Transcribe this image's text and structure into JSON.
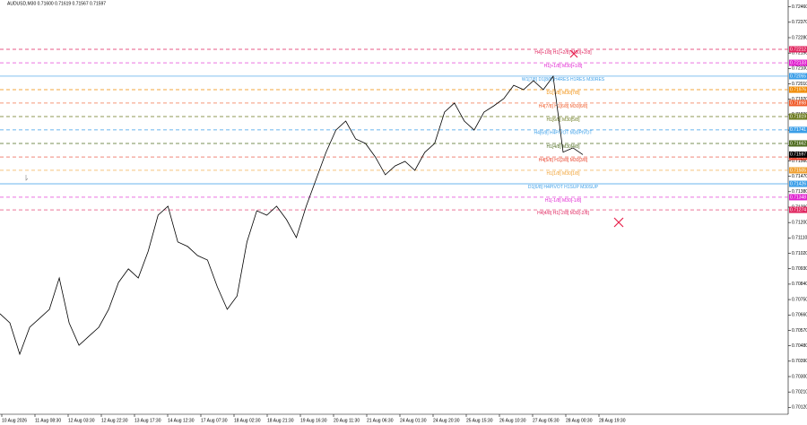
{
  "chart_data": {
    "type": "line",
    "title": "AUDUSD,M30  0.71600 0.71619 0.71567 0.71597",
    "ylim": [
      0.7008,
      0.725
    ],
    "yticks": [
      {
        "value": 0.7012,
        "label": "0.70120"
      },
      {
        "value": 0.7021,
        "label": "0.70210"
      },
      {
        "value": 0.703,
        "label": "0.70300"
      },
      {
        "value": 0.7039,
        "label": "0.70390"
      },
      {
        "value": 0.7048,
        "label": "0.70480"
      },
      {
        "value": 0.7057,
        "label": "0.70570"
      },
      {
        "value": 0.7066,
        "label": "0.70660"
      },
      {
        "value": 0.7075,
        "label": "0.70750"
      },
      {
        "value": 0.7084,
        "label": "0.70840"
      },
      {
        "value": 0.7093,
        "label": "0.70930"
      },
      {
        "value": 0.7102,
        "label": "0.71020"
      },
      {
        "value": 0.7111,
        "label": "0.71110"
      },
      {
        "value": 0.712,
        "label": "0.71200"
      },
      {
        "value": 0.7129,
        "label": "0.71290"
      },
      {
        "value": 0.7138,
        "label": "0.71380"
      },
      {
        "value": 0.7147,
        "label": "0.71470"
      },
      {
        "value": 0.7156,
        "label": "0.71560"
      },
      {
        "value": 0.7165,
        "label": "0.71650"
      },
      {
        "value": 0.7174,
        "label": "0.71740"
      },
      {
        "value": 0.7183,
        "label": "0.71830"
      },
      {
        "value": 0.7192,
        "label": "0.71920"
      },
      {
        "value": 0.7201,
        "label": "0.72010"
      },
      {
        "value": 0.721,
        "label": "0.72100"
      },
      {
        "value": 0.7219,
        "label": "0.72190"
      },
      {
        "value": 0.7228,
        "label": "0.72280"
      },
      {
        "value": 0.7237,
        "label": "0.72370"
      },
      {
        "value": 0.7246,
        "label": "0.72460"
      }
    ],
    "x_tick_labels": [
      "10 Aug 2026",
      "11 Aug 08:30",
      "12 Aug 03:30",
      "12 Aug 22:30",
      "13 Aug 17:30",
      "14 Aug 12:30",
      "17 Aug 07:30",
      "18 Aug 02:30",
      "18 Aug 21:30",
      "19 Aug 16:30",
      "20 Aug 11:30",
      "21 Aug 06:30",
      "24 Aug 01:30",
      "24 Aug 20:30",
      "25 Aug 15:30",
      "26 Aug 10:30",
      "27 Aug 05:30",
      "28 Aug 00:30",
      "28 Aug 19:30"
    ],
    "series": [
      {
        "name": "AUDUSD,M30",
        "color": "#000000",
        "values": [
          0.70667,
          0.70614,
          0.70431,
          0.70588,
          0.7064,
          0.70693,
          0.70876,
          0.70614,
          0.70483,
          0.70536,
          0.70588,
          0.70693,
          0.7085,
          0.70929,
          0.70876,
          0.71033,
          0.71243,
          0.71295,
          0.71086,
          0.7106,
          0.71007,
          0.70981,
          0.70824,
          0.70693,
          0.70771,
          0.71086,
          0.71269,
          0.71243,
          0.71295,
          0.71217,
          0.71112,
          0.71295,
          0.71452,
          0.7161,
          0.7174,
          0.71793,
          0.71688,
          0.71662,
          0.71583,
          0.71479,
          0.71531,
          0.71557,
          0.71505,
          0.7161,
          0.71662,
          0.71845,
          0.71898,
          0.71793,
          0.7174,
          0.71845,
          0.71882,
          0.71924,
          0.72002,
          0.71976,
          0.72029,
          0.71976,
          0.72055,
          0.71611,
          0.71636,
          0.71597
        ]
      }
    ],
    "levels": [
      {
        "value": 0.72212,
        "label": "H4[+1/8] H1[+2/8] M30[+2/8]",
        "color": "#e0245e",
        "dash": true
      },
      {
        "value": 0.72133,
        "label": "H1[+1/8] M30[+1/8]",
        "color": "#e020d0",
        "dash": true
      },
      {
        "value": 0.72055,
        "label": "W1[7/8] D1[8/8] H4RES H1RES M30RES",
        "color": "#3a9ee8",
        "dash": false
      },
      {
        "value": 0.71976,
        "label": "D1[7/8] M30[7/8]",
        "color": "#f08a00",
        "dash": true
      },
      {
        "value": 0.71898,
        "label": "H4[7/8] H1[6/8] M30[6/8]",
        "color": "#f05a28",
        "dash": true
      },
      {
        "value": 0.71819,
        "label": "H1[6/8] M30[5/8]",
        "color": "#6b7a1e",
        "dash": true
      },
      {
        "value": 0.71741,
        "label": "H4[6/8] H4PIVOT M30PIVOT",
        "color": "#3a9ee8",
        "dash": true
      },
      {
        "value": 0.71662,
        "label": "H1[4/8] M30[4/8]",
        "color": "#4d6b1e",
        "dash": true
      },
      {
        "value": 0.71583,
        "label": "H4[5/8] H1[3/8] M30[3/8]",
        "color": "#e8402a",
        "dash": true
      },
      {
        "value": 0.71505,
        "label": "H1[1/8] M30[1/8]",
        "color": "#f0a030",
        "dash": true
      },
      {
        "value": 0.71426,
        "label": "D1[6/8] H4PIVOT H1SUP M30SUP",
        "color": "#3a9ee8",
        "dash": false
      },
      {
        "value": 0.71348,
        "label": "H1[-1/8] M30[-1/8]",
        "color": "#e020d0",
        "dash": true
      },
      {
        "value": 0.71274,
        "label": "H4[4/8] H1[-2/8] M30[-2/8]",
        "color": "#e0245e",
        "dash": true
      }
    ]
  }
}
